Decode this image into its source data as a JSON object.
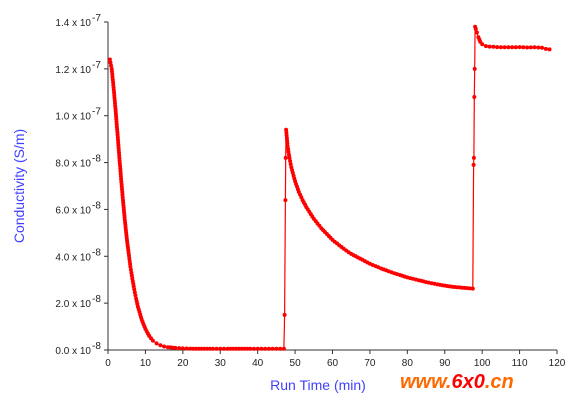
{
  "chart_data": {
    "type": "scatter",
    "xlabel": "Run Time (min)",
    "ylabel": "Conductivity (S/m)",
    "xlim": [
      0,
      120
    ],
    "ylim": [
      0,
      1.4e-07
    ],
    "x_ticks": [
      0,
      10,
      20,
      30,
      40,
      50,
      60,
      70,
      80,
      90,
      100,
      110,
      120
    ],
    "y_ticks": [
      {
        "value": 0.0,
        "mantissa": "0.0 x 10",
        "exp": "-8"
      },
      {
        "value": 2e-08,
        "mantissa": "2.0 x 10",
        "exp": "-8"
      },
      {
        "value": 4e-08,
        "mantissa": "4.0 x 10",
        "exp": "-8"
      },
      {
        "value": 6e-08,
        "mantissa": "6.0 x 10",
        "exp": "-8"
      },
      {
        "value": 8e-08,
        "mantissa": "8.0 x 10",
        "exp": "-8"
      },
      {
        "value": 1e-07,
        "mantissa": "1.0 x 10",
        "exp": "-7"
      },
      {
        "value": 1.2e-07,
        "mantissa": "1.2 x 10",
        "exp": "-7"
      },
      {
        "value": 1.4e-07,
        "mantissa": "1.4 x 10",
        "exp": "-7"
      }
    ],
    "grid": false,
    "series": [
      {
        "color": "#ff0000",
        "x": [
          0.5,
          1,
          1.5,
          2,
          2.5,
          3,
          3.5,
          4,
          4.5,
          5,
          5.5,
          6,
          6.5,
          7,
          7.5,
          8,
          9,
          10,
          11,
          12,
          13,
          14,
          15,
          16,
          18,
          20,
          22,
          25,
          28,
          30,
          32,
          35,
          38,
          40,
          42,
          44,
          46,
          47,
          47.2,
          47.4,
          47.5,
          47.6,
          48,
          48.5,
          49,
          50,
          51,
          52,
          53,
          55,
          57,
          60,
          63,
          65,
          68,
          70,
          73,
          75,
          78,
          80,
          83,
          85,
          88,
          90,
          92,
          94,
          96,
          97.5,
          97.7,
          97.8,
          97.9,
          98,
          98.1,
          98.3,
          98.6,
          99,
          99.5,
          100,
          101,
          102,
          104,
          106,
          108,
          110,
          112,
          114,
          116,
          117,
          118
        ],
        "y": [
          1.24e-07,
          1.2e-07,
          1.12e-07,
          1.03e-07,
          9.3e-08,
          8.3e-08,
          7.3e-08,
          6.4e-08,
          5.55e-08,
          4.8e-08,
          4.15e-08,
          3.55e-08,
          3.05e-08,
          2.6e-08,
          2.2e-08,
          1.85e-08,
          1.3e-08,
          9e-09,
          6e-09,
          4e-09,
          2.8e-09,
          2e-09,
          1.5e-09,
          1.2e-09,
          9e-10,
          7e-10,
          6e-10,
          5e-10,
          5e-10,
          5e-10,
          5e-10,
          5e-10,
          5e-10,
          5e-10,
          5e-10,
          5e-10,
          5e-10,
          5e-10,
          1.5e-08,
          6.4e-08,
          8.2e-08,
          9.4e-08,
          8.7e-08,
          8.2e-08,
          7.8e-08,
          7.2e-08,
          6.75e-08,
          6.4e-08,
          6.1e-08,
          5.6e-08,
          5.2e-08,
          4.7e-08,
          4.32e-08,
          4.1e-08,
          3.85e-08,
          3.68e-08,
          3.48e-08,
          3.36e-08,
          3.2e-08,
          3.1e-08,
          2.98e-08,
          2.9e-08,
          2.8e-08,
          2.75e-08,
          2.7e-08,
          2.67e-08,
          2.64e-08,
          2.62e-08,
          7.9e-08,
          8.2e-08,
          1.08e-07,
          1.2e-07,
          1.38e-07,
          1.37e-07,
          1.355e-07,
          1.335e-07,
          1.315e-07,
          1.305e-07,
          1.297e-07,
          1.295e-07,
          1.293e-07,
          1.292e-07,
          1.292e-07,
          1.293e-07,
          1.291e-07,
          1.292e-07,
          1.29e-07,
          1.285e-07,
          1.283e-07
        ]
      }
    ]
  },
  "watermark": {
    "prefix": "www.",
    "highlight": "6x0",
    "suffix": ".cn",
    "colors": {
      "prefix": "#ff6a00",
      "highlight": "#ff0000",
      "suffix": "#ff6a00"
    }
  },
  "colors": {
    "axis_title": "#4040ff",
    "series": "#ff0000"
  }
}
